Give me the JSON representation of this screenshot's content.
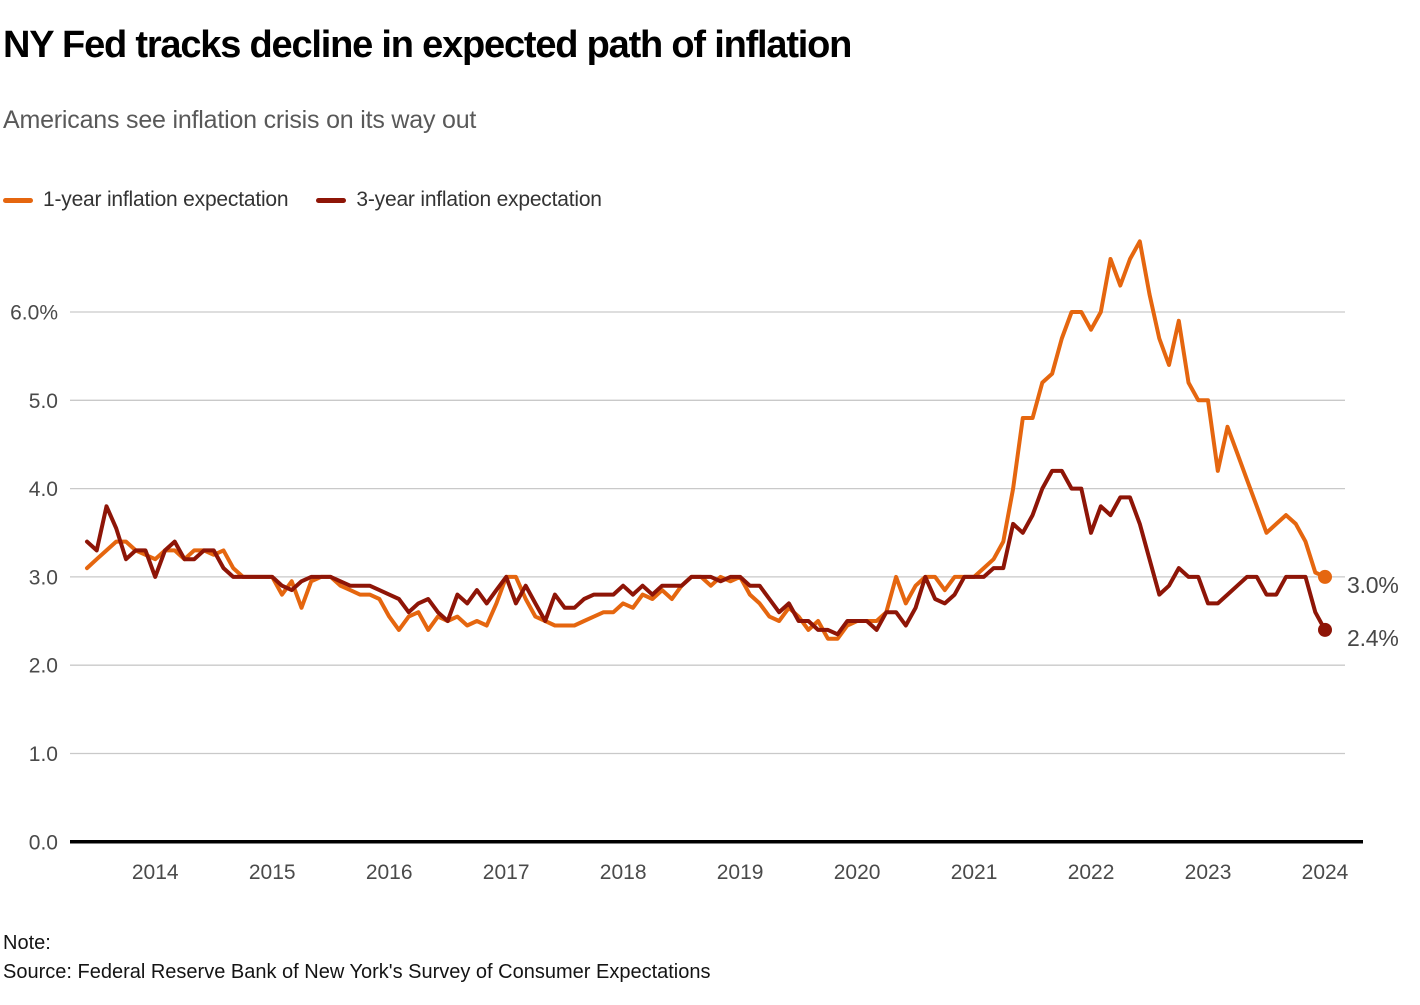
{
  "header": {
    "title": "NY Fed tracks decline in expected path of inflation",
    "subtitle": "Americans see inflation crisis on its way out"
  },
  "legend": [
    {
      "label": "1-year inflation expectation",
      "color": "#E5660F"
    },
    {
      "label": "3-year inflation expectation",
      "color": "#8E1507"
    }
  ],
  "footer": {
    "note_label": "Note:",
    "source": "Source: Federal Reserve Bank of New York's Survey of Consumer Expectations"
  },
  "chart_data": {
    "type": "line",
    "title": "NY Fed tracks decline in expected path of inflation",
    "subtitle": "Americans see inflation crisis on its way out",
    "frequency": "monthly",
    "start_month": "2013-06",
    "end_month": "2024-01",
    "grid": "horizontal",
    "legend_position": "top",
    "ylim": [
      0,
      6.9
    ],
    "yticks": [
      {
        "value": 6,
        "label": "6.0%"
      },
      {
        "value": 5,
        "label": "5.0"
      },
      {
        "value": 4,
        "label": "4.0"
      },
      {
        "value": 3,
        "label": "3.0"
      },
      {
        "value": 2,
        "label": "2.0"
      },
      {
        "value": 1,
        "label": "1.0"
      },
      {
        "value": 0,
        "label": "0.0"
      }
    ],
    "x_tick_labels": [
      "2014",
      "2015",
      "2016",
      "2017",
      "2018",
      "2019",
      "2020",
      "2021",
      "2022",
      "2023",
      "2024"
    ],
    "x_first_tick_month_index": 7,
    "x_tick_interval_months": 12,
    "series": [
      {
        "name": "1-year inflation expectation",
        "color": "#E5660F",
        "end_label": "3.0%",
        "values": [
          3.1,
          3.2,
          3.3,
          3.4,
          3.4,
          3.3,
          3.25,
          3.2,
          3.3,
          3.3,
          3.2,
          3.3,
          3.3,
          3.25,
          3.3,
          3.1,
          3.0,
          3.0,
          3.0,
          3.0,
          2.8,
          2.95,
          2.65,
          2.95,
          3.0,
          3.0,
          2.9,
          2.85,
          2.8,
          2.8,
          2.75,
          2.55,
          2.4,
          2.55,
          2.6,
          2.4,
          2.55,
          2.5,
          2.55,
          2.45,
          2.5,
          2.45,
          2.7,
          3.0,
          3.0,
          2.75,
          2.55,
          2.5,
          2.45,
          2.45,
          2.45,
          2.5,
          2.55,
          2.6,
          2.6,
          2.7,
          2.65,
          2.8,
          2.75,
          2.85,
          2.75,
          2.9,
          3.0,
          3.0,
          2.9,
          3.0,
          2.95,
          3.0,
          2.8,
          2.7,
          2.55,
          2.5,
          2.65,
          2.55,
          2.4,
          2.5,
          2.3,
          2.3,
          2.45,
          2.5,
          2.5,
          2.5,
          2.6,
          3.0,
          2.7,
          2.9,
          3.0,
          3.0,
          2.85,
          3.0,
          3.0,
          3.0,
          3.1,
          3.2,
          3.4,
          4.0,
          4.8,
          4.8,
          5.2,
          5.3,
          5.7,
          6.0,
          6.0,
          5.8,
          6.0,
          6.6,
          6.3,
          6.6,
          6.8,
          6.2,
          5.7,
          5.4,
          5.9,
          5.2,
          5.0,
          5.0,
          4.2,
          4.7,
          4.4,
          4.1,
          3.8,
          3.5,
          3.6,
          3.7,
          3.6,
          3.4,
          3.05,
          3.0
        ]
      },
      {
        "name": "3-year inflation expectation",
        "color": "#8E1507",
        "end_label": "2.4%",
        "values": [
          3.4,
          3.3,
          3.8,
          3.55,
          3.2,
          3.3,
          3.3,
          3.0,
          3.3,
          3.4,
          3.2,
          3.2,
          3.3,
          3.3,
          3.1,
          3.0,
          3.0,
          3.0,
          3.0,
          3.0,
          2.9,
          2.85,
          2.95,
          3.0,
          3.0,
          3.0,
          2.95,
          2.9,
          2.9,
          2.9,
          2.85,
          2.8,
          2.75,
          2.6,
          2.7,
          2.75,
          2.6,
          2.5,
          2.8,
          2.7,
          2.85,
          2.7,
          2.85,
          3.0,
          2.7,
          2.9,
          2.7,
          2.5,
          2.8,
          2.65,
          2.65,
          2.75,
          2.8,
          2.8,
          2.8,
          2.9,
          2.8,
          2.9,
          2.8,
          2.9,
          2.9,
          2.9,
          3.0,
          3.0,
          3.0,
          2.95,
          3.0,
          3.0,
          2.9,
          2.9,
          2.75,
          2.6,
          2.7,
          2.5,
          2.5,
          2.4,
          2.4,
          2.35,
          2.5,
          2.5,
          2.5,
          2.4,
          2.6,
          2.6,
          2.45,
          2.65,
          3.0,
          2.75,
          2.7,
          2.8,
          3.0,
          3.0,
          3.0,
          3.1,
          3.1,
          3.6,
          3.5,
          3.7,
          4.0,
          4.2,
          4.2,
          4.0,
          4.0,
          3.5,
          3.8,
          3.7,
          3.9,
          3.9,
          3.6,
          3.2,
          2.8,
          2.9,
          3.1,
          3.0,
          3.0,
          2.7,
          2.7,
          2.8,
          2.9,
          3.0,
          3.0,
          2.8,
          2.8,
          3.0,
          3.0,
          3.0,
          2.6,
          2.4
        ]
      }
    ]
  }
}
